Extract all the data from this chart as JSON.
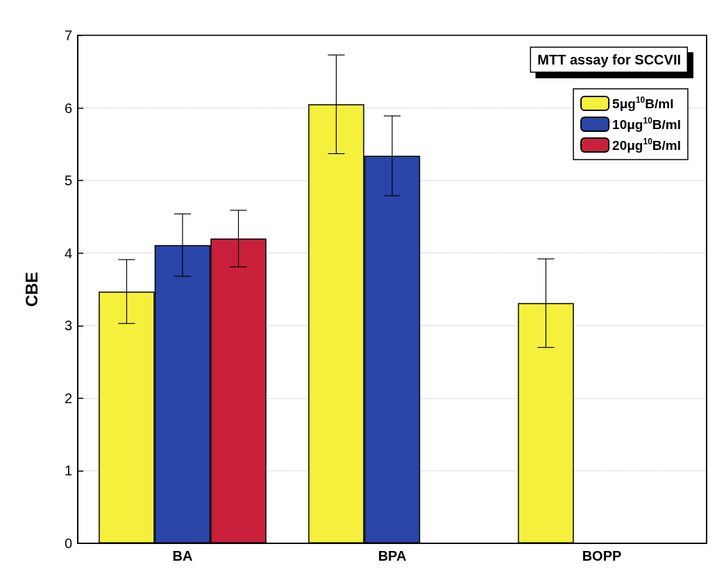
{
  "chart_data": {
    "type": "bar",
    "title": "MTT assay for SCCVII",
    "ylabel": "CBE",
    "categories": [
      "BA",
      "BPA",
      "BOPP"
    ],
    "series": [
      {
        "name": "5μg$^{10}$B/ml",
        "color": "#f5f03c",
        "values": [
          3.47,
          6.05,
          3.31
        ],
        "errors": [
          0.44,
          0.68,
          0.61
        ]
      },
      {
        "name": "10μg$^{10}$B/ml",
        "color": "#2a45a8",
        "values": [
          4.11,
          5.34,
          null
        ],
        "errors": [
          0.43,
          0.55,
          null
        ]
      },
      {
        "name": "20μg$^{10}$B/ml",
        "color": "#c8203a",
        "values": [
          4.2,
          null,
          null
        ],
        "errors": [
          0.39,
          null,
          null
        ]
      }
    ],
    "ylim": [
      0,
      7
    ],
    "yticks": [
      0,
      1,
      2,
      3,
      4,
      5,
      6,
      7
    ],
    "grid": "y",
    "legend": "top right"
  }
}
